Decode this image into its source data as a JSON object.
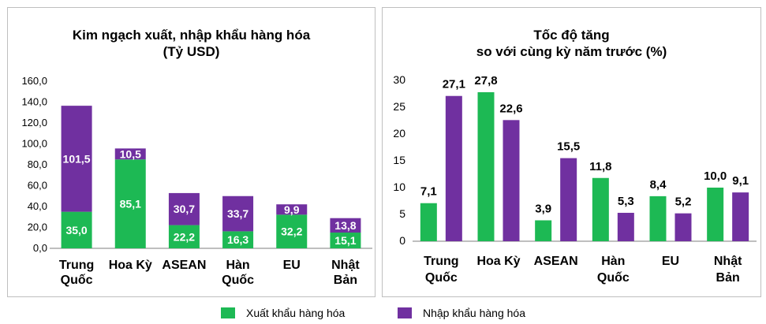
{
  "colors": {
    "export": "#1db954",
    "import": "#7030a0",
    "axis": "#7f7f7f"
  },
  "legend": {
    "export": "Xuất khẩu hàng hóa",
    "import": "Nhập khẩu hàng hóa"
  },
  "left_title": {
    "line1": "Kim ngạch xuất, nhập khẩu hàng hóa",
    "line2": "(Tỷ USD)"
  },
  "right_title": {
    "line1": "Tốc độ tăng",
    "line2": "so với cùng kỳ năm trước (%)"
  },
  "chart_data": [
    {
      "type": "bar",
      "stacked": true,
      "title": "Kim ngạch xuất, nhập khẩu hàng hóa (Tỷ USD)",
      "categories": [
        [
          "Trung",
          "Quốc"
        ],
        [
          "Hoa Kỳ"
        ],
        [
          "ASEAN"
        ],
        [
          "Hàn",
          "Quốc"
        ],
        [
          "EU"
        ],
        [
          "Nhật",
          "Bản"
        ]
      ],
      "series": [
        {
          "name": "Xuất khẩu hàng hóa",
          "values": [
            35.0,
            85.1,
            22.2,
            16.3,
            32.2,
            15.1
          ],
          "labels": [
            "35,0",
            "85,1",
            "22,2",
            "16,3",
            "32,2",
            "15,1"
          ]
        },
        {
          "name": "Nhập khẩu hàng hóa",
          "values": [
            101.5,
            10.5,
            30.7,
            33.7,
            9.9,
            13.8
          ],
          "labels": [
            "101,5",
            "10,5",
            "30,7",
            "33,7",
            "9,9",
            "13,8"
          ]
        }
      ],
      "ylim": [
        0,
        160
      ],
      "yticks": [
        "0,0",
        "20,0",
        "40,0",
        "60,0",
        "80,0",
        "100,0",
        "120,0",
        "140,0",
        "160,0"
      ]
    },
    {
      "type": "bar",
      "stacked": false,
      "title": "Tốc độ tăng so với cùng kỳ năm trước (%)",
      "categories": [
        [
          "Trung",
          "Quốc"
        ],
        [
          "Hoa Kỳ"
        ],
        [
          "ASEAN"
        ],
        [
          "Hàn",
          "Quốc"
        ],
        [
          "EU"
        ],
        [
          "Nhật",
          "Bản"
        ]
      ],
      "series": [
        {
          "name": "Xuất khẩu hàng hóa",
          "values": [
            7.1,
            27.8,
            3.9,
            11.8,
            8.4,
            10.0
          ],
          "labels": [
            "7,1",
            "27,8",
            "3,9",
            "11,8",
            "8,4",
            "10,0"
          ]
        },
        {
          "name": "Nhập khẩu hàng hóa",
          "values": [
            27.1,
            22.6,
            15.5,
            5.3,
            5.2,
            9.1
          ],
          "labels": [
            "27,1",
            "22,6",
            "15,5",
            "5,3",
            "5,2",
            "9,1"
          ]
        }
      ],
      "ylim": [
        0,
        30
      ],
      "yticks": [
        "0",
        "5",
        "10",
        "15",
        "20",
        "25",
        "30"
      ]
    }
  ]
}
